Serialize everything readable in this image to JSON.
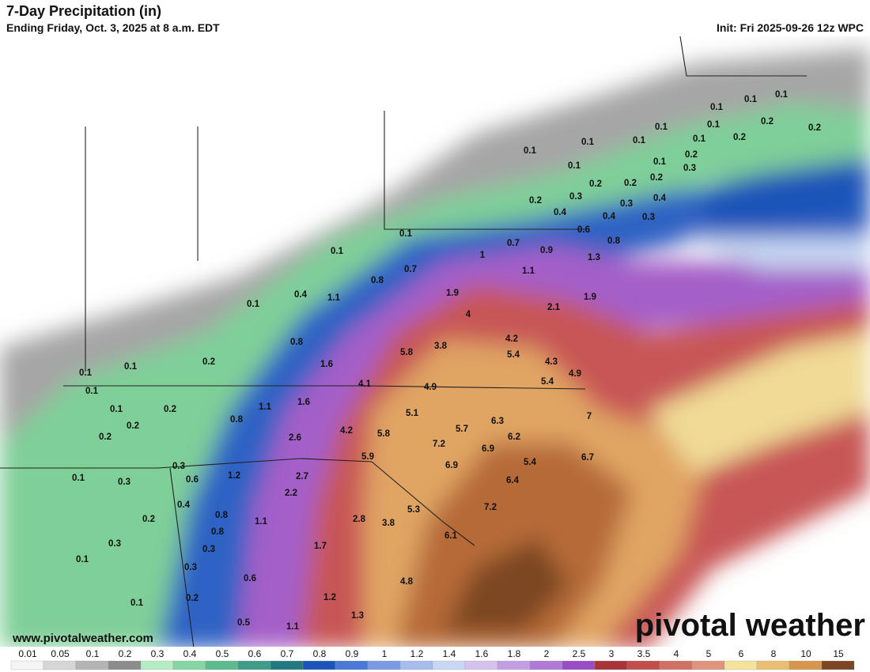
{
  "header": {
    "title": "7-Day Precipitation (in)",
    "subtitle": "Ending Friday, Oct. 3, 2025 at 8 a.m. EDT",
    "init": "Init: Fri 2025-09-26 12z WPC"
  },
  "labels": [
    0.1,
    0.1,
    0.1,
    0.1,
    0.2,
    0.2,
    0.1,
    0.1,
    0.2,
    0.2,
    0.1,
    0.1,
    0.1,
    0.1,
    0.1,
    0.2,
    0.2,
    0.2,
    0.3,
    0.2,
    0.3,
    0.4,
    0.3,
    0.4,
    0.4,
    0.3,
    0.1,
    0.6,
    0.8,
    0.7,
    0.9,
    1.0,
    1.3,
    0.1,
    0.7,
    0.8,
    1.1,
    0.4,
    1.1,
    1.9,
    1.9,
    2.1,
    0.1,
    4.0,
    0.8,
    3.8,
    4.2,
    5.8,
    5.4,
    1.6,
    4.3,
    4.9,
    0.2,
    0.1,
    0.1,
    4.1,
    4.9,
    5.4,
    0.1,
    1.6,
    1.1,
    0.1,
    0.2,
    5.1,
    6.3,
    7,
    0.8,
    0.2,
    4.2,
    5.8,
    5.7,
    6.2,
    2.6,
    0.2,
    7.2,
    6.9,
    5.9,
    5.4,
    6.7,
    0.3,
    6.9,
    0.1,
    0.6,
    1.2,
    2.7,
    0.3,
    6.4,
    0.4,
    2.2,
    7.2,
    0.8,
    0.2,
    1.1,
    2.8,
    3.8,
    5.3,
    0.8,
    0.3,
    0.3,
    1.7,
    6.1,
    0.1,
    0.3,
    0.6,
    4.8,
    0.2,
    0.1,
    1.2,
    1.3,
    0.5,
    1.1
  ],
  "legend": {
    "ticks": [
      0.01,
      0.05,
      0.1,
      0.2,
      0.3,
      0.4,
      0.5,
      0.6,
      0.7,
      0.8,
      0.9,
      1,
      1.2,
      1.4,
      1.6,
      1.8,
      2,
      2.5,
      3,
      3.5,
      4,
      5,
      6,
      8,
      10,
      15
    ],
    "colors": [
      "#f4f4f4",
      "#d6d6d6",
      "#b4b4b4",
      "#8c8c8c",
      "#b4ecc4",
      "#86d4a2",
      "#5cbb8e",
      "#3e9c88",
      "#227a80",
      "#1a54b8",
      "#4a78d6",
      "#7a9be4",
      "#a6bcec",
      "#c8d8f2",
      "#d6c2ec",
      "#c49ee2",
      "#b07ad6",
      "#9a4cc4",
      "#a8343a",
      "#c24e4c",
      "#d27064",
      "#e0947e",
      "#f4e39a",
      "#e9bf72",
      "#d6964e",
      "#7c4624"
    ]
  },
  "watermark": "www.pivotalweather.com",
  "brand": "pivotal weather"
}
